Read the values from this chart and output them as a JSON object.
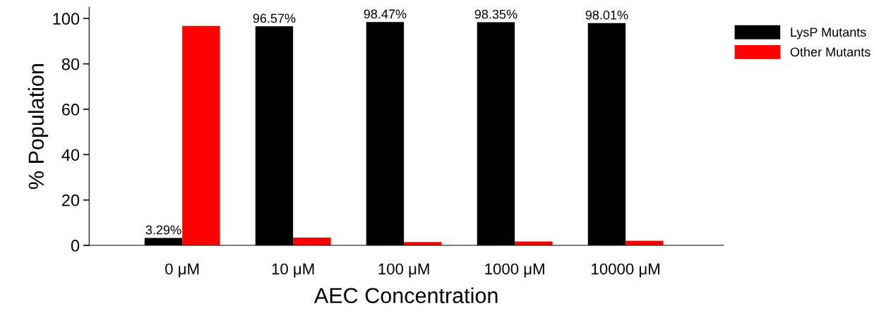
{
  "chart_data": {
    "type": "bar",
    "xlabel": "AEC Concentration",
    "ylabel": "% Population",
    "categories": [
      "0 μM",
      "10 μM",
      "100 μM",
      "1000 μM",
      "10000 μM"
    ],
    "series": [
      {
        "name": "LysP Mutants",
        "color": "#000000",
        "values": [
          3.29,
          96.57,
          98.47,
          98.35,
          98.01
        ],
        "value_labels": [
          "3.29%",
          "96.57%",
          "98.47%",
          "98.35%",
          "98.01%"
        ]
      },
      {
        "name": "Other Mutants",
        "color": "#ff0000",
        "values": [
          96.7,
          3.4,
          1.5,
          1.7,
          2.0
        ]
      }
    ],
    "ylim": [
      0,
      105
    ],
    "yticks": [
      0,
      20,
      40,
      60,
      80,
      100
    ],
    "grid": false,
    "legend": "top right"
  }
}
